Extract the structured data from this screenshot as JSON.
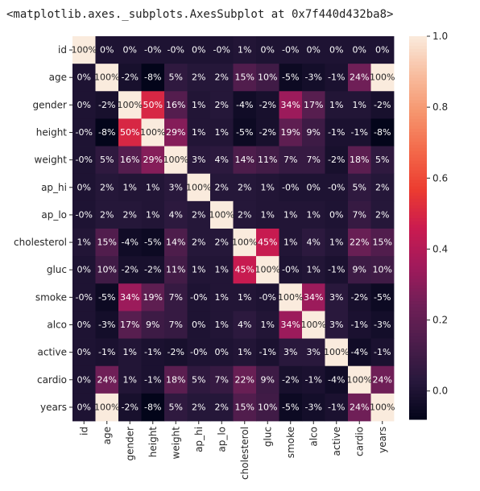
{
  "output_repr": "<matplotlib.axes._subplots.AxesSubplot at 0x7f440d432ba8>",
  "chart_data": {
    "type": "heatmap",
    "title": "",
    "variables": [
      "id",
      "age",
      "gender",
      "height",
      "weight",
      "ap_hi",
      "ap_lo",
      "cholesterol",
      "gluc",
      "smoke",
      "alco",
      "active",
      "cardio",
      "years"
    ],
    "values": [
      [
        1.0,
        0.0,
        0.0,
        -0.0,
        -0.0,
        0.0,
        -0.0,
        0.01,
        0.0,
        -0.0,
        0.0,
        0.0,
        0.0,
        0.0
      ],
      [
        0.0,
        1.0,
        -0.02,
        -0.08,
        0.05,
        0.02,
        0.02,
        0.15,
        0.1,
        -0.05,
        -0.03,
        -0.01,
        0.24,
        1.0
      ],
      [
        0.0,
        -0.02,
        1.0,
        0.5,
        0.16,
        0.01,
        0.02,
        -0.04,
        -0.02,
        0.34,
        0.17,
        0.01,
        0.01,
        -0.02
      ],
      [
        -0.0,
        -0.08,
        0.5,
        1.0,
        0.29,
        0.01,
        0.01,
        -0.05,
        -0.02,
        0.19,
        0.09,
        -0.01,
        -0.01,
        -0.08
      ],
      [
        -0.0,
        0.05,
        0.16,
        0.29,
        1.0,
        0.03,
        0.04,
        0.14,
        0.11,
        0.07,
        0.07,
        -0.02,
        0.18,
        0.05
      ],
      [
        0.0,
        0.02,
        0.01,
        0.01,
        0.03,
        1.0,
        0.02,
        0.02,
        0.01,
        -0.0,
        0.0,
        -0.0,
        0.05,
        0.02
      ],
      [
        -0.0,
        0.02,
        0.02,
        0.01,
        0.04,
        0.02,
        1.0,
        0.02,
        0.01,
        0.01,
        0.01,
        0.0,
        0.07,
        0.02
      ],
      [
        0.01,
        0.15,
        -0.04,
        -0.05,
        0.14,
        0.02,
        0.02,
        1.0,
        0.45,
        0.01,
        0.04,
        0.01,
        0.22,
        0.15
      ],
      [
        0.0,
        0.1,
        -0.02,
        -0.02,
        0.11,
        0.01,
        0.01,
        0.45,
        1.0,
        -0.0,
        0.01,
        -0.01,
        0.09,
        0.1
      ],
      [
        -0.0,
        -0.05,
        0.34,
        0.19,
        0.07,
        -0.0,
        0.01,
        0.01,
        -0.0,
        1.0,
        0.34,
        0.03,
        -0.02,
        -0.05
      ],
      [
        0.0,
        -0.03,
        0.17,
        0.09,
        0.07,
        0.0,
        0.01,
        0.04,
        0.01,
        0.34,
        1.0,
        0.03,
        -0.01,
        -0.03
      ],
      [
        0.0,
        -0.01,
        0.01,
        -0.01,
        -0.02,
        -0.0,
        0.0,
        0.01,
        -0.01,
        0.03,
        0.03,
        1.0,
        -0.04,
        -0.01
      ],
      [
        0.0,
        0.24,
        0.01,
        -0.01,
        0.18,
        0.05,
        0.07,
        0.22,
        0.09,
        -0.02,
        -0.01,
        -0.04,
        1.0,
        0.24
      ],
      [
        0.0,
        1.0,
        -0.02,
        -0.08,
        0.05,
        0.02,
        0.02,
        0.15,
        0.1,
        -0.05,
        -0.03,
        -0.01,
        0.24,
        1.0
      ]
    ],
    "cell_labels": [
      [
        "100%",
        "0%",
        "0%",
        "-0%",
        "-0%",
        "0%",
        "-0%",
        "1%",
        "0%",
        "-0%",
        "0%",
        "0%",
        "0%",
        "0%"
      ],
      [
        "0%",
        "100%",
        "-2%",
        "-8%",
        "5%",
        "2%",
        "2%",
        "15%",
        "10%",
        "-5%",
        "-3%",
        "-1%",
        "24%",
        "100%"
      ],
      [
        "0%",
        "-2%",
        "100%",
        "50%",
        "16%",
        "1%",
        "2%",
        "-4%",
        "-2%",
        "34%",
        "17%",
        "1%",
        "1%",
        "-2%"
      ],
      [
        "-0%",
        "-8%",
        "50%",
        "100%",
        "29%",
        "1%",
        "1%",
        "-5%",
        "-2%",
        "19%",
        "9%",
        "-1%",
        "-1%",
        "-8%"
      ],
      [
        "-0%",
        "5%",
        "16%",
        "29%",
        "100%",
        "3%",
        "4%",
        "14%",
        "11%",
        "7%",
        "7%",
        "-2%",
        "18%",
        "5%"
      ],
      [
        "0%",
        "2%",
        "1%",
        "1%",
        "3%",
        "100%",
        "2%",
        "2%",
        "1%",
        "-0%",
        "0%",
        "-0%",
        "5%",
        "2%"
      ],
      [
        "-0%",
        "2%",
        "2%",
        "1%",
        "4%",
        "2%",
        "100%",
        "2%",
        "1%",
        "1%",
        "1%",
        "0%",
        "7%",
        "2%"
      ],
      [
        "1%",
        "15%",
        "-4%",
        "-5%",
        "14%",
        "2%",
        "2%",
        "100%",
        "45%",
        "1%",
        "4%",
        "1%",
        "22%",
        "15%"
      ],
      [
        "0%",
        "10%",
        "-2%",
        "-2%",
        "11%",
        "1%",
        "1%",
        "45%",
        "100%",
        "-0%",
        "1%",
        "-1%",
        "9%",
        "10%"
      ],
      [
        "-0%",
        "-5%",
        "34%",
        "19%",
        "7%",
        "-0%",
        "1%",
        "1%",
        "-0%",
        "100%",
        "34%",
        "3%",
        "-2%",
        "-5%"
      ],
      [
        "0%",
        "-3%",
        "17%",
        "9%",
        "7%",
        "0%",
        "1%",
        "4%",
        "1%",
        "34%",
        "100%",
        "3%",
        "-1%",
        "-3%"
      ],
      [
        "0%",
        "-1%",
        "1%",
        "-1%",
        "-2%",
        "-0%",
        "0%",
        "1%",
        "-1%",
        "3%",
        "3%",
        "100%",
        "-4%",
        "-1%"
      ],
      [
        "0%",
        "24%",
        "1%",
        "-1%",
        "18%",
        "5%",
        "7%",
        "22%",
        "9%",
        "-2%",
        "-1%",
        "-4%",
        "100%",
        "24%"
      ],
      [
        "0%",
        "100%",
        "-2%",
        "-8%",
        "5%",
        "2%",
        "2%",
        "15%",
        "10%",
        "-5%",
        "-3%",
        "-1%",
        "24%",
        "100%"
      ]
    ],
    "colorbar": {
      "vmin": -0.08,
      "vmax": 1.0,
      "ticks": [
        0.0,
        0.2,
        0.4,
        0.6,
        0.8,
        1.0
      ],
      "tick_labels": [
        "0.0",
        "0.2",
        "0.4",
        "0.6",
        "0.8",
        "1.0"
      ]
    },
    "colormap": "rocket",
    "colormap_stops": [
      "#03051a",
      "#28183c",
      "#4c1d4b",
      "#701f57",
      "#a11a5b",
      "#cb1b4f",
      "#ec3c30",
      "#f3694a",
      "#f6956d",
      "#f8bd9f",
      "#faebdd"
    ],
    "text_color_dark": "#262626",
    "text_color_light": "#ffffff"
  }
}
